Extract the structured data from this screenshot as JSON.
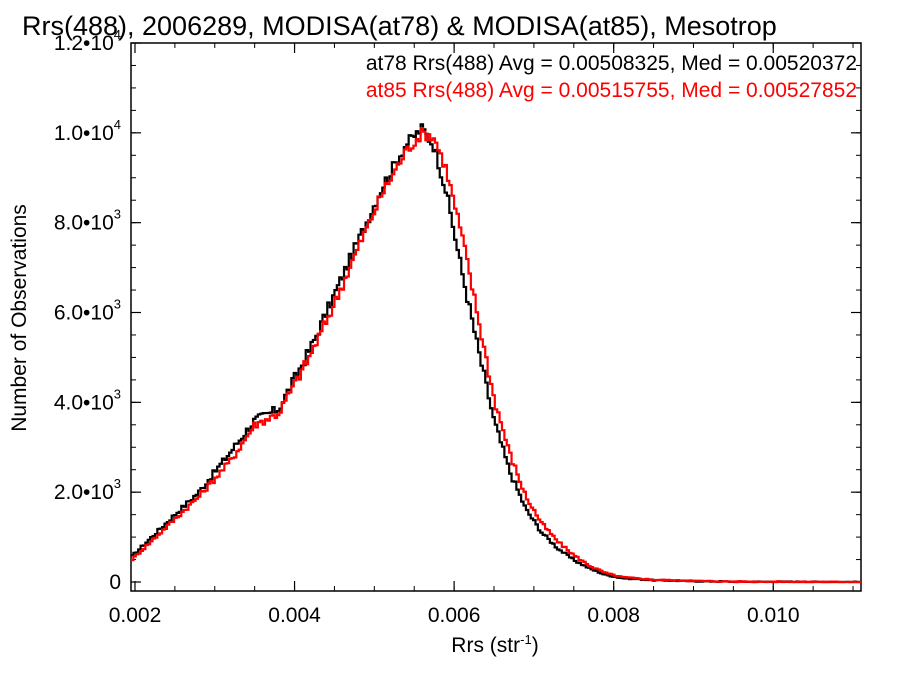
{
  "chart_data": {
    "type": "line",
    "title": "Rrs(488), 2006289, MODISA(at78) & MODISA(at85), Mesotrop",
    "xlabel": "Rrs (str",
    "xlabel_sup": "-1",
    "xlabel_close": ")",
    "ylabel": "Number of Observations",
    "xlim": [
      0.00195,
      0.0111
    ],
    "ylim": [
      -200,
      12000
    ],
    "grid": false,
    "x_ticks": [
      {
        "value": 0.002,
        "label": "0.002"
      },
      {
        "value": 0.004,
        "label": "0.004"
      },
      {
        "value": 0.006,
        "label": "0.006"
      },
      {
        "value": 0.008,
        "label": "0.008"
      },
      {
        "value": 0.01,
        "label": "0.010"
      }
    ],
    "y_ticks": [
      {
        "value": 0,
        "mant": "0",
        "exp": ""
      },
      {
        "value": 2000,
        "mant": "2.0•10",
        "exp": "3"
      },
      {
        "value": 4000,
        "mant": "4.0•10",
        "exp": "3"
      },
      {
        "value": 6000,
        "mant": "6.0•10",
        "exp": "3"
      },
      {
        "value": 8000,
        "mant": "8.0•10",
        "exp": "3"
      },
      {
        "value": 10000,
        "mant": "1.0•10",
        "exp": "4"
      },
      {
        "value": 12000,
        "mant": "1.2•10",
        "exp": "4"
      }
    ],
    "legend_placement": "top-right",
    "series": [
      {
        "name": "at78",
        "legend": "at78 Rrs(488) Avg = 0.00508325, Med = 0.00520372",
        "color": "#000000",
        "x": [
          0.00195,
          0.0025,
          0.0028,
          0.0032,
          0.0035,
          0.0038,
          0.0042,
          0.0045,
          0.0048,
          0.0051,
          0.0054,
          0.0056,
          0.00575,
          0.0059,
          0.0061,
          0.0063,
          0.0065,
          0.0067,
          0.0069,
          0.0071,
          0.0073,
          0.0075,
          0.0077,
          0.0079,
          0.0081,
          0.0085,
          0.009,
          0.0095,
          0.0111
        ],
        "y": [
          550,
          1500,
          2000,
          2900,
          3600,
          3850,
          5200,
          6400,
          7600,
          8800,
          9750,
          10100,
          9700,
          8700,
          6900,
          5200,
          3600,
          2450,
          1620,
          1100,
          750,
          490,
          300,
          160,
          90,
          40,
          20,
          8,
          0
        ]
      },
      {
        "name": "at85",
        "legend": "at85 Rrs(488) Avg = 0.00515755, Med = 0.00527852",
        "color": "#ff0000",
        "x": [
          0.00195,
          0.0025,
          0.0028,
          0.0032,
          0.0035,
          0.0038,
          0.0042,
          0.0045,
          0.0048,
          0.0051,
          0.0054,
          0.0056,
          0.00575,
          0.0059,
          0.0061,
          0.0063,
          0.0065,
          0.0067,
          0.0069,
          0.0071,
          0.0073,
          0.0075,
          0.0077,
          0.0079,
          0.0081,
          0.0085,
          0.009,
          0.0095,
          0.0111
        ],
        "y": [
          480,
          1400,
          1900,
          2700,
          3500,
          3750,
          5050,
          6200,
          7450,
          8650,
          9600,
          10000,
          9900,
          9200,
          7700,
          5900,
          4100,
          2850,
          1900,
          1300,
          900,
          600,
          360,
          200,
          110,
          50,
          25,
          10,
          0
        ]
      }
    ]
  }
}
